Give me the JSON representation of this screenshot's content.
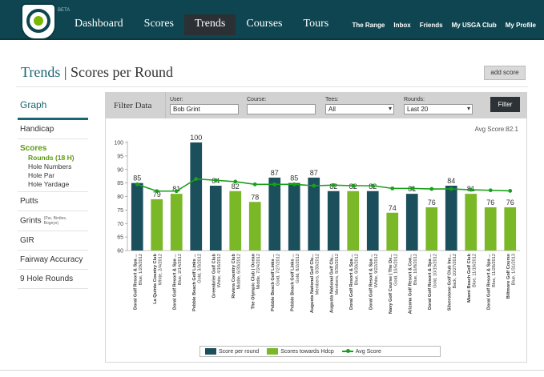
{
  "nav": {
    "logo_badge": "BETA",
    "main": [
      "Dashboard",
      "Scores",
      "Trends",
      "Courses",
      "Tours"
    ],
    "active": "Trends",
    "right": [
      "The Range",
      "Inbox",
      "Friends",
      "My USGA Club",
      "My Profile"
    ]
  },
  "page": {
    "title_part1": "Trends",
    "title_sep": " | ",
    "title_part2": "Scores per Round",
    "add_score": "add score"
  },
  "sidebar": {
    "graph": "Graph",
    "handicap": "Handicap",
    "scores": "Scores",
    "sub": [
      "Rounds (18 H)",
      "Hole Numbers",
      "Hole Par",
      "Hole Yardage"
    ],
    "putts": "Putts",
    "grints": "Grints",
    "grints_note": "(Par, Birdies, Bogeys)",
    "gir": "GIR",
    "fairway": "Fairway Accuracy",
    "nine_hole": "9 Hole Rounds"
  },
  "filter": {
    "title": "Filter Data",
    "user_label": "User:",
    "user_value": "Bob Grint",
    "course_label": "Course:",
    "course_value": "",
    "tees_label": "Tees:",
    "tees_value": "All",
    "rounds_label": "Rounds:",
    "rounds_value": "Last 20",
    "button": "Filter"
  },
  "avg_score_text": "Avg Score:82.1",
  "legend": {
    "per_round": "Score per round",
    "towards_hdcp": "Scores towards Hdcp",
    "avg": "Avg Score"
  },
  "colors": {
    "per_round": "#1b4f5c",
    "towards_hdcp": "#7ab828",
    "avg_line": "#19a01b",
    "nav_bg": "#0e4550"
  },
  "chart_data": {
    "type": "bar",
    "ylim": [
      60,
      100
    ],
    "yticks": [
      60,
      65,
      70,
      75,
      80,
      85,
      90,
      95,
      100
    ],
    "categories": [
      "Doral Golf Resort & Spa ...\nBlue, 1/29/2012",
      "La Quinta Country Club\nWhite, 2/4/2012",
      "Doral Golf Resort & Spa ...\nBlue, 2/14/2012",
      "Pebble Beach Golf Links ...\nGold, 3/3/2012",
      "Greenbrier Golf Club\nWhite, 4/16/2012",
      "Riviera Country Club\nMiddle, 6/30/2012",
      "The Olympic Club | Ocean\nMiddle, 7/24/2012",
      "Pebble Beach Golf Links ...\nGold, 7/27/2012",
      "Pebble Beach Golf Links ...\nGold, 8/2/2012",
      "Augusta National Golf Clu...\nMembers, 8/30/2012",
      "Augusta National Golf Clu...\nMembers, 8/30/2012",
      "Doral Golf Resort & Spa ...\nBlue, 8/30/2012",
      "Doral Golf Resort & Spa ...\nWhite, 9/22/2012",
      "Navy Golf Course | The De...\nGold, 10/5/2012",
      "Arizona Golf Resort & Con...\nBlue, 10/8/2012",
      "Doral Golf Resort & Spa ...\nGold, 10/15/2012",
      "Silverstone Golf Club Inc...\nBack, 10/27/2012",
      "Miami Beach Golf Club\nBlue, 11/16/2012",
      "Doral Golf Resort & Spa ...\nBlue, 11/26/2012",
      "Biltmore Golf Course\nBlue, 1/31/2013"
    ],
    "values": [
      85,
      79,
      81,
      100,
      84,
      82,
      78,
      87,
      85,
      87,
      82,
      82,
      82,
      74,
      81,
      76,
      84,
      81,
      76,
      76
    ],
    "series_type": [
      "round",
      "hdcp",
      "hdcp",
      "round",
      "round",
      "hdcp",
      "hdcp",
      "round",
      "round",
      "round",
      "round",
      "hdcp",
      "round",
      "hdcp",
      "round",
      "hdcp",
      "round",
      "hdcp",
      "hdcp",
      "hdcp"
    ],
    "avg_line": [
      84.5,
      82.0,
      82.0,
      86.5,
      86.0,
      85.5,
      84.5,
      84.5,
      84.5,
      84.0,
      84.2,
      84.0,
      84.0,
      83.0,
      83.0,
      82.8,
      82.8,
      82.5,
      82.3,
      82.1
    ]
  }
}
